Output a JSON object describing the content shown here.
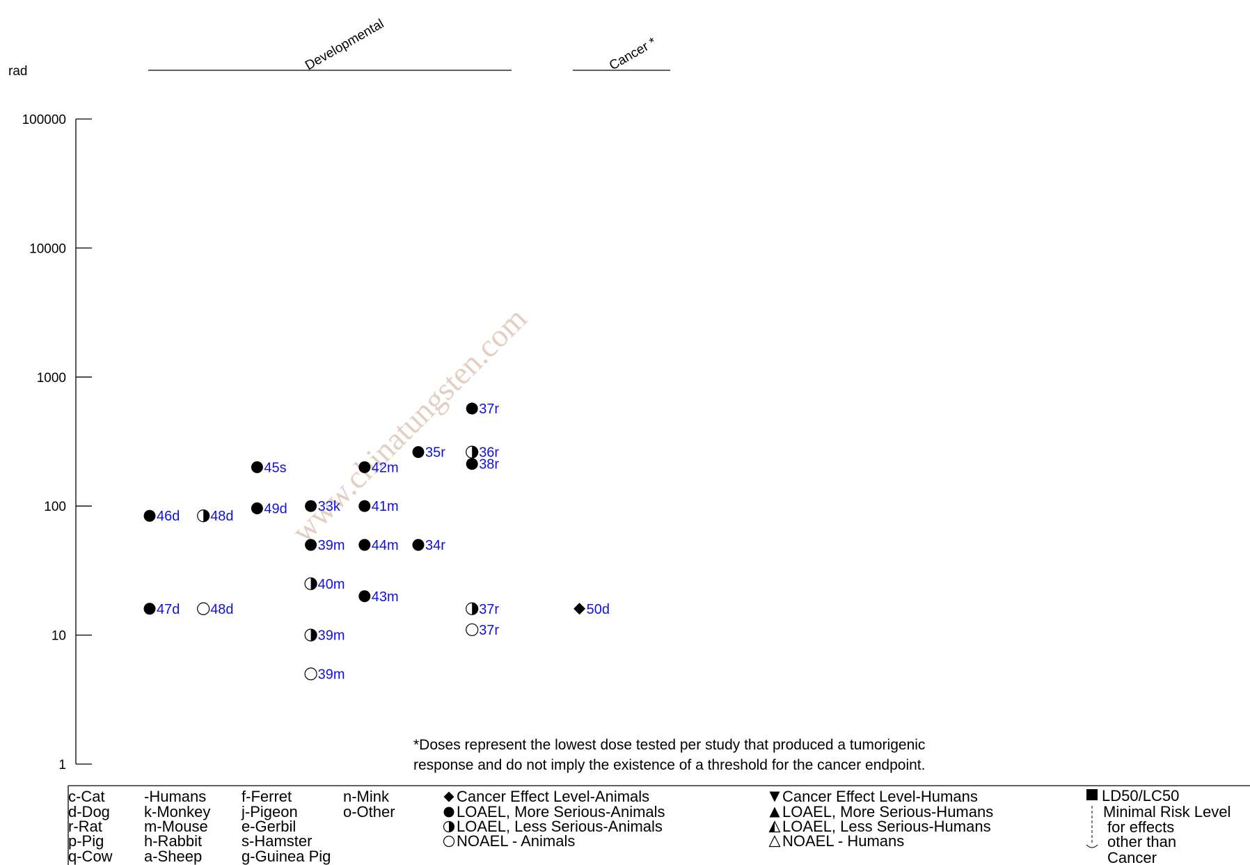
{
  "chart_data": {
    "type": "scatter",
    "yscale": "log",
    "ylim": [
      1,
      100000
    ],
    "ylabel": "rad",
    "yticks": [
      "100000",
      "10000",
      "1000",
      "100",
      "10",
      "1"
    ],
    "categories": [
      "Developmental",
      "Cancer *"
    ],
    "points": [
      {
        "col": 1,
        "y": 84,
        "marker": "loael_more_animals",
        "label": "46d"
      },
      {
        "col": 1,
        "y": 16,
        "marker": "loael_more_animals",
        "label": "47d"
      },
      {
        "col": 2,
        "y": 84,
        "marker": "loael_less_animals",
        "label": "48d"
      },
      {
        "col": 2,
        "y": 16,
        "marker": "noael_animals",
        "label": "48d"
      },
      {
        "col": 3,
        "y": 200,
        "marker": "loael_more_animals",
        "label": "45s"
      },
      {
        "col": 3,
        "y": 96,
        "marker": "loael_more_animals",
        "label": "49d"
      },
      {
        "col": 4,
        "y": 100,
        "marker": "loael_more_animals",
        "label": "33k"
      },
      {
        "col": 4,
        "y": 50,
        "marker": "loael_more_animals",
        "label": "39m"
      },
      {
        "col": 4,
        "y": 25,
        "marker": "loael_less_animals",
        "label": "40m"
      },
      {
        "col": 4,
        "y": 10,
        "marker": "loael_less_animals",
        "label": "39m"
      },
      {
        "col": 4,
        "y": 5,
        "marker": "noael_animals",
        "label": "39m"
      },
      {
        "col": 5,
        "y": 200,
        "marker": "loael_more_animals",
        "label": "42m"
      },
      {
        "col": 5,
        "y": 100,
        "marker": "loael_more_animals",
        "label": "41m"
      },
      {
        "col": 5,
        "y": 50,
        "marker": "loael_more_animals",
        "label": "44m"
      },
      {
        "col": 5,
        "y": 20,
        "marker": "loael_more_animals",
        "label": "43m"
      },
      {
        "col": 6,
        "y": 262,
        "marker": "loael_more_animals",
        "label": "35r"
      },
      {
        "col": 6,
        "y": 50,
        "marker": "loael_more_animals",
        "label": "34r"
      },
      {
        "col": 7,
        "y": 570,
        "marker": "loael_more_animals",
        "label": "37r"
      },
      {
        "col": 7,
        "y": 262,
        "marker": "loael_less_animals",
        "label": "36r"
      },
      {
        "col": 7,
        "y": 212,
        "marker": "loael_more_animals",
        "label": "38r"
      },
      {
        "col": 7,
        "y": 16,
        "marker": "loael_less_animals",
        "label": "37r"
      },
      {
        "col": 7,
        "y": 11,
        "marker": "noael_animals",
        "label": "37r"
      },
      {
        "col": 9,
        "y": 16,
        "marker": "cancer_animals",
        "label": "50d"
      }
    ],
    "footnote": [
      "*Doses represent the lowest dose tested per study that produced a tumorigenic",
      "response and do not imply the existence of a threshold for the cancer endpoint."
    ],
    "watermark": "www.chinatungsten.com"
  },
  "legend": {
    "species_cols": [
      [
        "c-Cat",
        "d-Dog",
        "r-Rat",
        "p-Pig",
        "q-Cow"
      ],
      [
        "-Humans",
        "k-Monkey",
        "m-Mouse",
        "h-Rabbit",
        "a-Sheep"
      ],
      [
        "f-Ferret",
        "j-Pigeon",
        "e-Gerbil",
        "s-Hamster",
        "g-Guinea Pig"
      ],
      [
        "n-Mink",
        "o-Other"
      ]
    ],
    "animal_markers": [
      {
        "marker": "cancer_animals",
        "label": "Cancer Effect Level-Animals"
      },
      {
        "marker": "loael_more_animals",
        "label": "LOAEL, More Serious-Animals"
      },
      {
        "marker": "loael_less_animals",
        "label": "LOAEL, Less Serious-Animals"
      },
      {
        "marker": "noael_animals",
        "label": "NOAEL - Animals"
      }
    ],
    "human_markers": [
      {
        "marker": "cancer_humans",
        "label": "Cancer Effect Level-Humans"
      },
      {
        "marker": "loael_more_humans",
        "label": "LOAEL, More Serious-Humans"
      },
      {
        "marker": "loael_less_humans",
        "label": "LOAEL, Less Serious-Humans"
      },
      {
        "marker": "noael_humans",
        "label": "NOAEL - Humans"
      }
    ],
    "other": {
      "ld50": "LD50/LC50",
      "mrl": [
        "Minimal Risk Level",
        "for effects",
        "other than",
        "Cancer"
      ]
    }
  }
}
